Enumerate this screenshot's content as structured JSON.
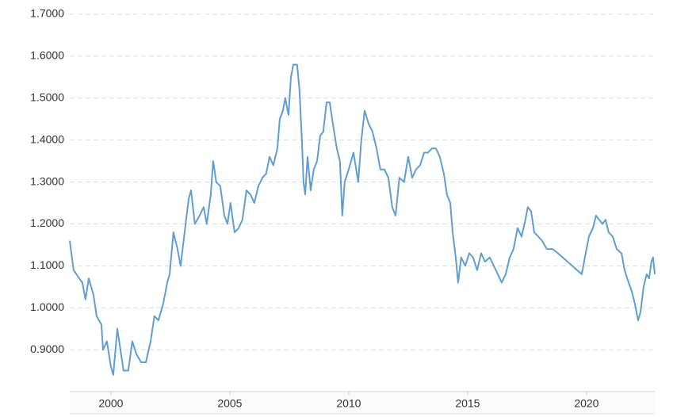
{
  "chart_data": {
    "type": "line",
    "color": "#5f9ed4",
    "grid": true,
    "xlim": [
      1998.27,
      2022.87
    ],
    "xticks": [
      2000,
      2005,
      2010,
      2015,
      2020
    ],
    "ylim": [
      0.8,
      1.7
    ],
    "yticks": [
      {
        "value": 0.9,
        "label": "0.9000"
      },
      {
        "value": 1.0,
        "label": "1.0000"
      },
      {
        "value": 1.1,
        "label": "1.1000"
      },
      {
        "value": 1.2,
        "label": "1.2000"
      },
      {
        "value": 1.3,
        "label": "1.3000"
      },
      {
        "value": 1.4,
        "label": "1.4000"
      },
      {
        "value": 1.5,
        "label": "1.5000"
      },
      {
        "value": 1.6,
        "label": "1.6000"
      },
      {
        "value": 1.7,
        "label": "1.7000"
      }
    ],
    "x": [
      1998.27,
      1998.43,
      1998.67,
      1998.8,
      1998.93,
      1999.07,
      1999.27,
      1999.4,
      1999.6,
      1999.67,
      1999.83,
      2000.0,
      2000.1,
      2000.27,
      2000.4,
      2000.53,
      2000.73,
      2000.9,
      2001.07,
      2001.27,
      2001.47,
      2001.67,
      2001.83,
      2002.0,
      2002.2,
      2002.37,
      2002.47,
      2002.63,
      2002.8,
      2002.93,
      2003.1,
      2003.27,
      2003.37,
      2003.53,
      2003.73,
      2003.9,
      2004.03,
      2004.2,
      2004.3,
      2004.43,
      2004.6,
      2004.77,
      2004.9,
      2005.03,
      2005.2,
      2005.37,
      2005.53,
      2005.7,
      2005.87,
      2006.03,
      2006.2,
      2006.37,
      2006.53,
      2006.67,
      2006.83,
      2007.0,
      2007.1,
      2007.23,
      2007.33,
      2007.47,
      2007.57,
      2007.67,
      2007.83,
      2007.93,
      2008.03,
      2008.1,
      2008.17,
      2008.27,
      2008.4,
      2008.53,
      2008.67,
      2008.8,
      2008.93,
      2009.07,
      2009.2,
      2009.33,
      2009.5,
      2009.63,
      2009.73,
      2009.83,
      2010.0,
      2010.2,
      2010.4,
      2010.53,
      2010.67,
      2010.83,
      2011.0,
      2011.17,
      2011.33,
      2011.5,
      2011.67,
      2011.83,
      2011.97,
      2012.13,
      2012.33,
      2012.5,
      2012.67,
      2012.83,
      2013.0,
      2013.17,
      2013.33,
      2013.5,
      2013.67,
      2013.83,
      2014.0,
      2014.13,
      2014.27,
      2014.37,
      2014.5,
      2014.6,
      2014.73,
      2014.9,
      2015.07,
      2015.23,
      2015.4,
      2015.57,
      2015.73,
      2015.93,
      2016.1,
      2016.27,
      2016.43,
      2016.6,
      2016.77,
      2016.93,
      2017.1,
      2017.27,
      2017.43,
      2017.53,
      2017.67,
      2017.8,
      2017.97,
      2018.13,
      2018.33,
      2018.57,
      2018.8,
      2019.0,
      2019.2,
      2019.4,
      2019.6,
      2019.8,
      2019.93,
      2020.1,
      2020.27,
      2020.4,
      2020.53,
      2020.67,
      2020.8,
      2020.93,
      2021.1,
      2021.27,
      2021.47,
      2021.6,
      2021.77,
      2021.9,
      2022.03,
      2022.17,
      2022.27,
      2022.4,
      2022.53,
      2022.63,
      2022.73,
      2022.8,
      2022.87
    ],
    "values": [
      1.16,
      1.09,
      1.07,
      1.06,
      1.02,
      1.07,
      1.03,
      0.98,
      0.96,
      0.9,
      0.92,
      0.86,
      0.84,
      0.95,
      0.9,
      0.85,
      0.85,
      0.92,
      0.89,
      0.87,
      0.87,
      0.92,
      0.98,
      0.97,
      1.01,
      1.06,
      1.08,
      1.18,
      1.14,
      1.1,
      1.18,
      1.26,
      1.28,
      1.2,
      1.22,
      1.24,
      1.2,
      1.27,
      1.35,
      1.3,
      1.29,
      1.22,
      1.2,
      1.25,
      1.18,
      1.19,
      1.21,
      1.28,
      1.27,
      1.25,
      1.29,
      1.31,
      1.32,
      1.36,
      1.34,
      1.38,
      1.45,
      1.47,
      1.5,
      1.46,
      1.55,
      1.58,
      1.58,
      1.52,
      1.4,
      1.3,
      1.27,
      1.36,
      1.28,
      1.33,
      1.35,
      1.41,
      1.42,
      1.49,
      1.49,
      1.44,
      1.38,
      1.35,
      1.22,
      1.3,
      1.33,
      1.37,
      1.3,
      1.4,
      1.47,
      1.44,
      1.42,
      1.38,
      1.33,
      1.33,
      1.31,
      1.24,
      1.22,
      1.31,
      1.3,
      1.36,
      1.31,
      1.33,
      1.34,
      1.37,
      1.37,
      1.38,
      1.38,
      1.36,
      1.32,
      1.27,
      1.25,
      1.18,
      1.12,
      1.06,
      1.12,
      1.1,
      1.13,
      1.12,
      1.09,
      1.13,
      1.11,
      1.12,
      1.1,
      1.08,
      1.06,
      1.08,
      1.12,
      1.14,
      1.19,
      1.17,
      1.21,
      1.24,
      1.23,
      1.18,
      1.17,
      1.16,
      1.14,
      1.14,
      1.13,
      1.12,
      1.11,
      1.1,
      1.09,
      1.08,
      1.12,
      1.17,
      1.19,
      1.22,
      1.21,
      1.2,
      1.21,
      1.18,
      1.17,
      1.14,
      1.13,
      1.09,
      1.06,
      1.04,
      1.01,
      0.97,
      0.99,
      1.05,
      1.08,
      1.07,
      1.11,
      1.12,
      1.08
    ]
  }
}
